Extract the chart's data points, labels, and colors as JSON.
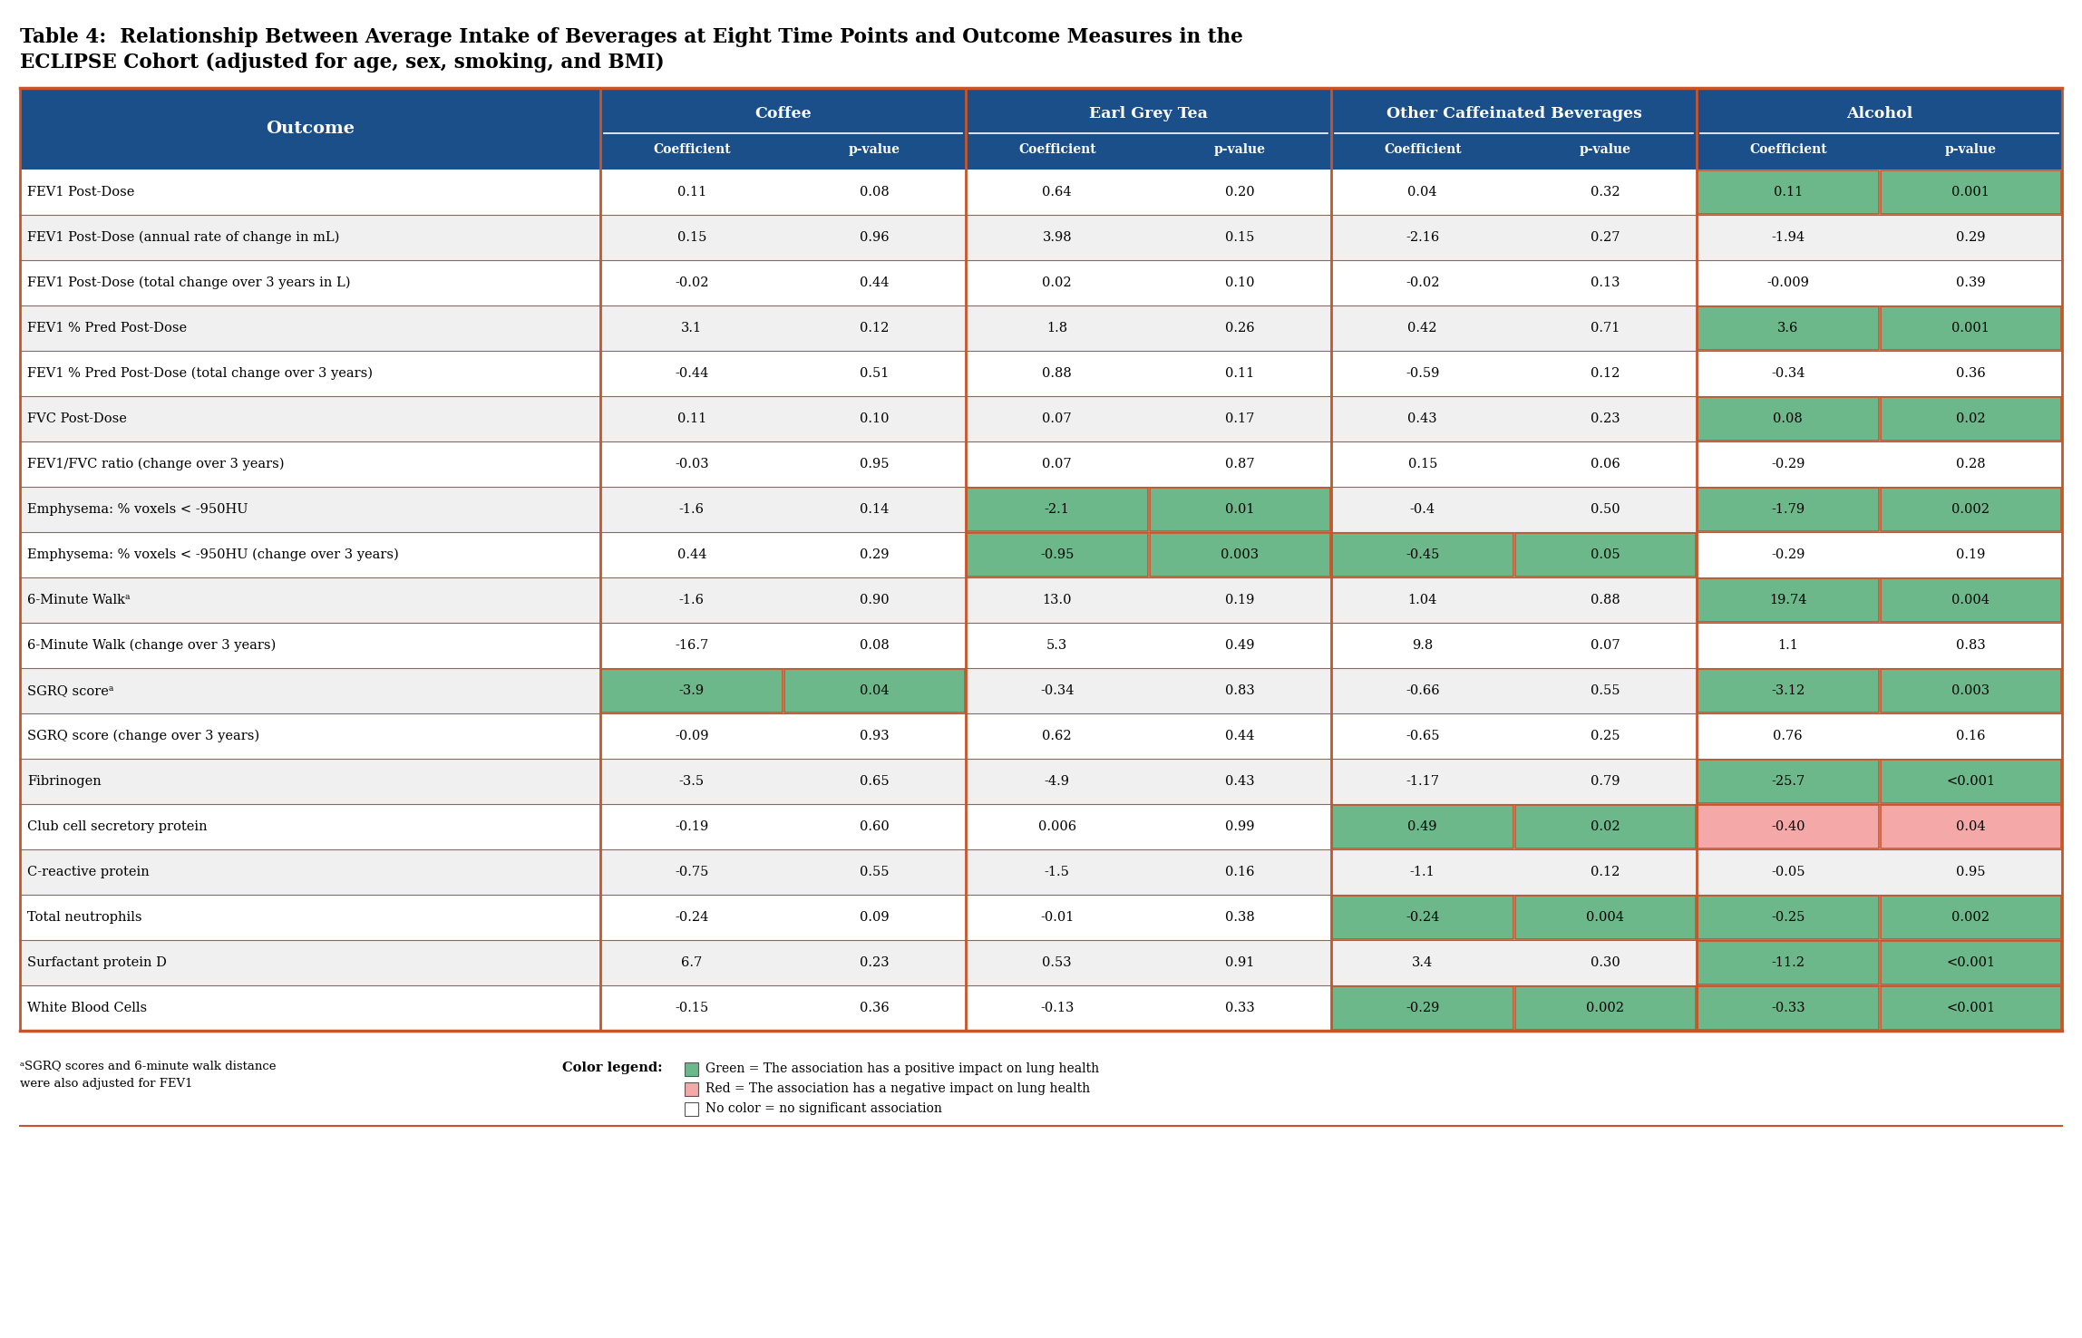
{
  "title_line1": "Table 4:  Relationship Between Average Intake of Beverages at Eight Time Points and Outcome Measures in the",
  "title_line2": "ECLIPSE Cohort (adjusted for age, sex, smoking, and BMI)",
  "col_groups": [
    "Coffee",
    "Earl Grey Tea",
    "Other Caffeinated Beverages",
    "Alcohol"
  ],
  "header_bg": "#1B4F8A",
  "green_color": "#6DB88A",
  "red_color": "#F4A9A8",
  "orange_border": "#C8552A",
  "rows": [
    {
      "outcome": "FEV1 Post-Dose",
      "values": [
        "0.11",
        "0.08",
        "0.64",
        "0.20",
        "0.04",
        "0.32",
        "0.11",
        "0.001"
      ],
      "colors": [
        "w",
        "w",
        "w",
        "w",
        "w",
        "w",
        "g",
        "g"
      ]
    },
    {
      "outcome": "FEV1 Post-Dose (annual rate of change in mL)",
      "values": [
        "0.15",
        "0.96",
        "3.98",
        "0.15",
        "-2.16",
        "0.27",
        "-1.94",
        "0.29"
      ],
      "colors": [
        "w",
        "w",
        "w",
        "w",
        "w",
        "w",
        "w",
        "w"
      ]
    },
    {
      "outcome": "FEV1 Post-Dose (total change over 3 years in L)",
      "values": [
        "-0.02",
        "0.44",
        "0.02",
        "0.10",
        "-0.02",
        "0.13",
        "-0.009",
        "0.39"
      ],
      "colors": [
        "w",
        "w",
        "w",
        "w",
        "w",
        "w",
        "w",
        "w"
      ]
    },
    {
      "outcome": "FEV1 % Pred Post-Dose",
      "values": [
        "3.1",
        "0.12",
        "1.8",
        "0.26",
        "0.42",
        "0.71",
        "3.6",
        "0.001"
      ],
      "colors": [
        "w",
        "w",
        "w",
        "w",
        "w",
        "w",
        "g",
        "g"
      ]
    },
    {
      "outcome": "FEV1 % Pred Post-Dose (total change over 3 years)",
      "values": [
        "-0.44",
        "0.51",
        "0.88",
        "0.11",
        "-0.59",
        "0.12",
        "-0.34",
        "0.36"
      ],
      "colors": [
        "w",
        "w",
        "w",
        "w",
        "w",
        "w",
        "w",
        "w"
      ]
    },
    {
      "outcome": "FVC Post-Dose",
      "values": [
        "0.11",
        "0.10",
        "0.07",
        "0.17",
        "0.43",
        "0.23",
        "0.08",
        "0.02"
      ],
      "colors": [
        "w",
        "w",
        "w",
        "w",
        "w",
        "w",
        "g",
        "g"
      ]
    },
    {
      "outcome": "FEV1/FVC ratio (change over 3 years)",
      "values": [
        "-0.03",
        "0.95",
        "0.07",
        "0.87",
        "0.15",
        "0.06",
        "-0.29",
        "0.28"
      ],
      "colors": [
        "w",
        "w",
        "w",
        "w",
        "w",
        "w",
        "w",
        "w"
      ]
    },
    {
      "outcome": "Emphysema: % voxels < -950HU",
      "values": [
        "-1.6",
        "0.14",
        "-2.1",
        "0.01",
        "-0.4",
        "0.50",
        "-1.79",
        "0.002"
      ],
      "colors": [
        "w",
        "w",
        "g",
        "g",
        "w",
        "w",
        "g",
        "g"
      ]
    },
    {
      "outcome": "Emphysema: % voxels < -950HU (change over 3 years)",
      "values": [
        "0.44",
        "0.29",
        "-0.95",
        "0.003",
        "-0.45",
        "0.05",
        "-0.29",
        "0.19"
      ],
      "colors": [
        "w",
        "w",
        "g",
        "g",
        "g",
        "g",
        "w",
        "w"
      ]
    },
    {
      "outcome": "6-Minute Walkᵃ",
      "values": [
        "-1.6",
        "0.90",
        "13.0",
        "0.19",
        "1.04",
        "0.88",
        "19.74",
        "0.004"
      ],
      "colors": [
        "w",
        "w",
        "w",
        "w",
        "w",
        "w",
        "g",
        "g"
      ]
    },
    {
      "outcome": "6-Minute Walk (change over 3 years)",
      "values": [
        "-16.7",
        "0.08",
        "5.3",
        "0.49",
        "9.8",
        "0.07",
        "1.1",
        "0.83"
      ],
      "colors": [
        "w",
        "w",
        "w",
        "w",
        "w",
        "w",
        "w",
        "w"
      ]
    },
    {
      "outcome": "SGRQ scoreᵃ",
      "values": [
        "-3.9",
        "0.04",
        "-0.34",
        "0.83",
        "-0.66",
        "0.55",
        "-3.12",
        "0.003"
      ],
      "colors": [
        "g",
        "g",
        "w",
        "w",
        "w",
        "w",
        "g",
        "g"
      ]
    },
    {
      "outcome": "SGRQ score (change over 3 years)",
      "values": [
        "-0.09",
        "0.93",
        "0.62",
        "0.44",
        "-0.65",
        "0.25",
        "0.76",
        "0.16"
      ],
      "colors": [
        "w",
        "w",
        "w",
        "w",
        "w",
        "w",
        "w",
        "w"
      ]
    },
    {
      "outcome": "Fibrinogen",
      "values": [
        "-3.5",
        "0.65",
        "-4.9",
        "0.43",
        "-1.17",
        "0.79",
        "-25.7",
        "<0.001"
      ],
      "colors": [
        "w",
        "w",
        "w",
        "w",
        "w",
        "w",
        "g",
        "g"
      ]
    },
    {
      "outcome": "Club cell secretory protein",
      "values": [
        "-0.19",
        "0.60",
        "0.006",
        "0.99",
        "0.49",
        "0.02",
        "-0.40",
        "0.04"
      ],
      "colors": [
        "w",
        "w",
        "w",
        "w",
        "g",
        "g",
        "r",
        "r"
      ]
    },
    {
      "outcome": "C-reactive protein",
      "values": [
        "-0.75",
        "0.55",
        "-1.5",
        "0.16",
        "-1.1",
        "0.12",
        "-0.05",
        "0.95"
      ],
      "colors": [
        "w",
        "w",
        "w",
        "w",
        "w",
        "w",
        "w",
        "w"
      ]
    },
    {
      "outcome": "Total neutrophils",
      "values": [
        "-0.24",
        "0.09",
        "-0.01",
        "0.38",
        "-0.24",
        "0.004",
        "-0.25",
        "0.002"
      ],
      "colors": [
        "w",
        "w",
        "w",
        "w",
        "g",
        "g",
        "g",
        "g"
      ]
    },
    {
      "outcome": "Surfactant protein D",
      "values": [
        "6.7",
        "0.23",
        "0.53",
        "0.91",
        "3.4",
        "0.30",
        "-11.2",
        "<0.001"
      ],
      "colors": [
        "w",
        "w",
        "w",
        "w",
        "w",
        "w",
        "g",
        "g"
      ]
    },
    {
      "outcome": "White Blood Cells",
      "values": [
        "-0.15",
        "0.36",
        "-0.13",
        "0.33",
        "-0.29",
        "0.002",
        "-0.33",
        "<0.001"
      ],
      "colors": [
        "w",
        "w",
        "w",
        "w",
        "g",
        "g",
        "g",
        "g"
      ]
    }
  ],
  "footnote1": "ᵃSGRQ scores and 6-minute walk distance",
  "footnote2": "were also adjusted for FEV1",
  "legend_title": "Color legend:",
  "legend_green": "Green = The association has a positive impact on lung health",
  "legend_red": "Red = The association has a negative impact on lung health",
  "legend_none": "No color = no significant association"
}
